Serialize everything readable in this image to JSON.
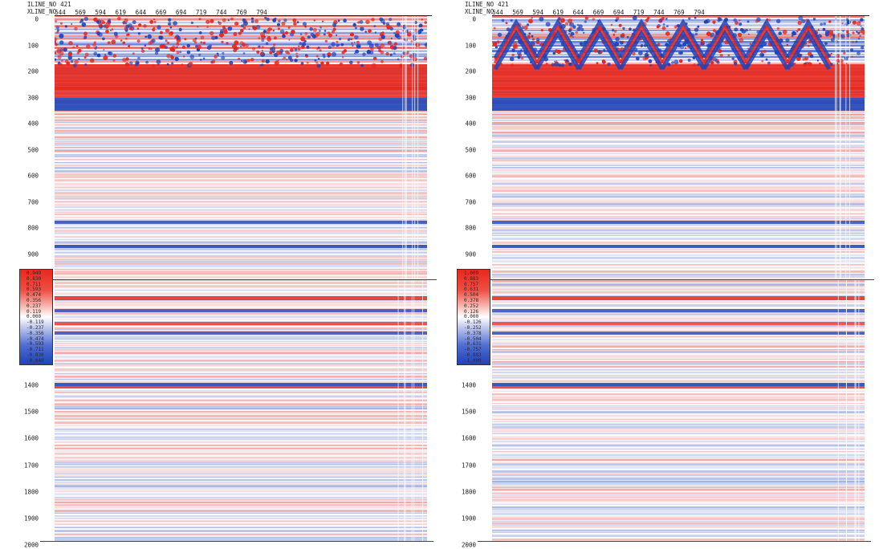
{
  "panels": [
    {
      "id": "left",
      "header": {
        "line1_label": "ILINE_NO",
        "line1_value": "421",
        "line2_label": "XLINE_NO"
      },
      "x_ticks": [
        "544",
        "569",
        "594",
        "619",
        "644",
        "669",
        "694",
        "719",
        "744",
        "769",
        "794"
      ],
      "y_ticks_top": [
        "0",
        "100",
        "200",
        "300",
        "400",
        "500",
        "600",
        "700",
        "800",
        "900"
      ],
      "y_ticks_bottom": [
        "1400",
        "1500",
        "1600",
        "1700",
        "1800",
        "1900",
        "2000"
      ],
      "colorbar_labels": [
        "0.949",
        "0.830",
        "0.711",
        "0.593",
        "0.474",
        "0.356",
        "0.237",
        "0.119",
        "0.000",
        "-0.119",
        "-0.237",
        "-0.356",
        "-0.474",
        "-0.593",
        "-0.711",
        "-0.830",
        "-0.949"
      ]
    },
    {
      "id": "right",
      "header": {
        "line1_label": "ILINE_NO",
        "line1_value": "421",
        "line2_label": "XLINE_NO"
      },
      "x_ticks": [
        "544",
        "569",
        "594",
        "619",
        "644",
        "669",
        "694",
        "719",
        "744",
        "769",
        "794"
      ],
      "y_ticks_top": [
        "0",
        "100",
        "200",
        "300",
        "400",
        "500",
        "600",
        "700",
        "800",
        "900"
      ],
      "y_ticks_bottom": [
        "1400",
        "1500",
        "1600",
        "1700",
        "1800",
        "1900",
        "2000"
      ],
      "colorbar_labels": [
        "1.009",
        "0.883",
        "0.757",
        "0.631",
        "0.504",
        "0.378",
        "0.252",
        "0.126",
        "0.000",
        "-0.126",
        "-0.252",
        "-0.378",
        "-0.504",
        "-0.631",
        "-0.757",
        "-0.883",
        "-1.009"
      ]
    }
  ],
  "colors": {
    "positive": "#e8281d",
    "negative": "#1f43b8",
    "background": "#ffffff"
  }
}
